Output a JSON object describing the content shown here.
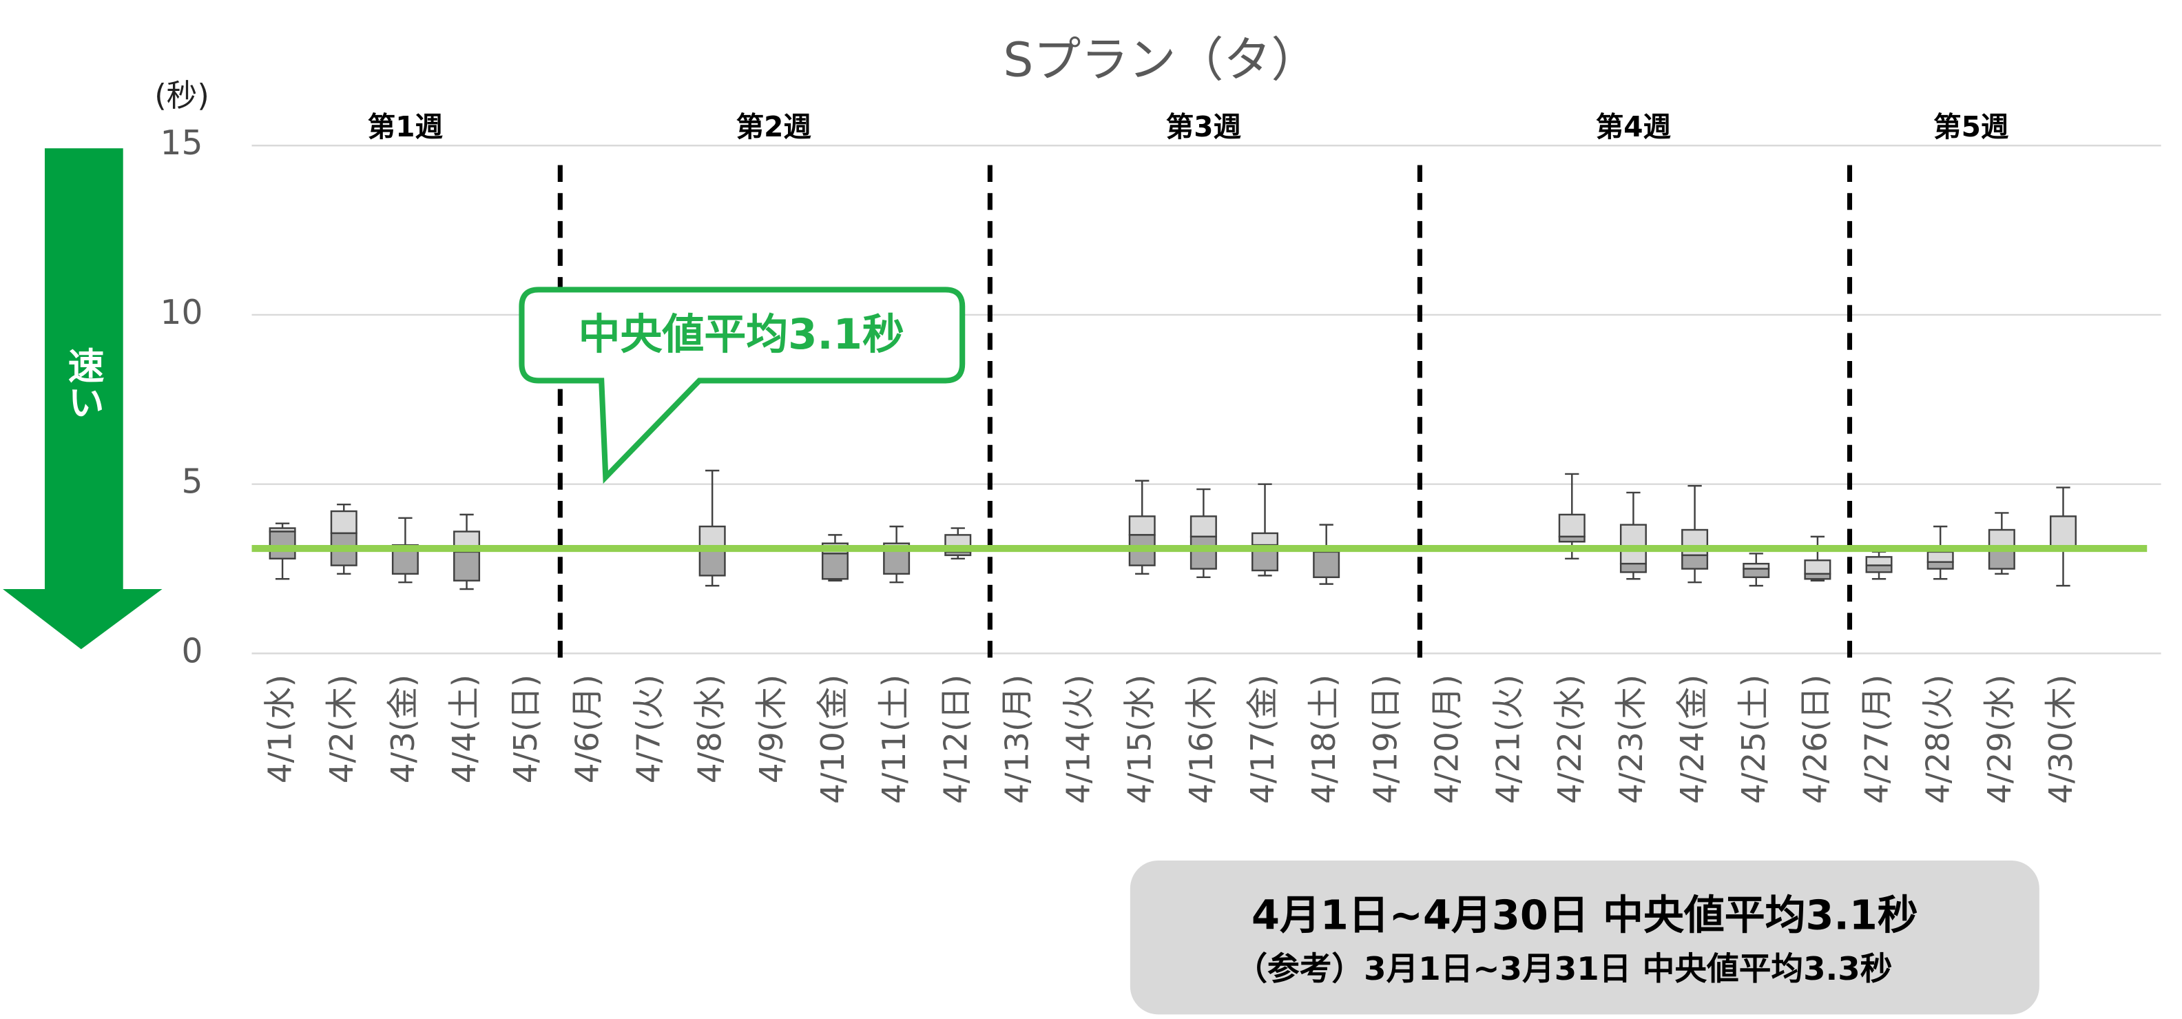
{
  "chart_data": {
    "type": "box",
    "title": "Sプラン（タ）",
    "y_unit": "(秒)",
    "speed_label": "速い",
    "callout": "中央値平均3.1秒",
    "summary": [
      "4月1日~4月30日 中央値平均3.1秒",
      "（参考）3月1日~3月31日 中央値平均3.3秒"
    ],
    "week_labels": [
      "第1週",
      "第2週",
      "第3週",
      "第4週",
      "第5週"
    ],
    "categories": [
      "4/1(水)",
      "4/2(木)",
      "4/3(金)",
      "4/4(土)",
      "4/5(日)",
      "4/6(月)",
      "4/7(火)",
      "4/8(水)",
      "4/9(木)",
      "4/10(金)",
      "4/11(土)",
      "4/12(日)",
      "4/13(月)",
      "4/14(火)",
      "4/15(水)",
      "4/16(木)",
      "4/17(金)",
      "4/18(土)",
      "4/19(日)",
      "4/20(月)",
      "4/21(火)",
      "4/22(水)",
      "4/23(木)",
      "4/24(金)",
      "4/25(土)",
      "4/26(日)",
      "4/27(月)",
      "4/28(火)",
      "4/29(水)",
      "4/30(木)"
    ],
    "max": [
      3.84,
      4.4,
      4.0,
      4.1,
      null,
      null,
      null,
      5.4,
      null,
      3.5,
      3.75,
      3.7,
      null,
      null,
      5.1,
      4.85,
      5.0,
      3.8,
      null,
      null,
      null,
      5.3,
      4.75,
      4.95,
      2.95,
      3.45,
      3.0,
      3.75,
      4.15,
      4.9
    ],
    "q3": [
      3.7,
      4.2,
      3.2,
      3.6,
      null,
      null,
      null,
      3.75,
      null,
      3.25,
      3.25,
      3.5,
      null,
      null,
      4.05,
      4.05,
      3.55,
      3.05,
      null,
      null,
      null,
      4.1,
      3.8,
      3.65,
      2.65,
      2.75,
      2.85,
      3.0,
      3.65,
      4.05
    ],
    "median": [
      3.6,
      3.55,
      3.1,
      3.0,
      null,
      null,
      null,
      3.05,
      null,
      2.95,
      3.1,
      3.0,
      null,
      null,
      3.5,
      3.45,
      3.2,
      3.0,
      null,
      null,
      null,
      3.45,
      2.65,
      2.9,
      2.5,
      2.35,
      2.6,
      2.7,
      3.1,
      3.15
    ],
    "q1": [
      2.8,
      2.6,
      2.35,
      2.15,
      null,
      null,
      null,
      2.3,
      null,
      2.2,
      2.35,
      2.9,
      null,
      null,
      2.6,
      2.5,
      2.45,
      2.25,
      null,
      null,
      null,
      3.3,
      2.4,
      2.5,
      2.25,
      2.2,
      2.4,
      2.5,
      2.5,
      3.1
    ],
    "min": [
      2.2,
      2.35,
      2.1,
      1.9,
      null,
      null,
      null,
      2.0,
      null,
      2.15,
      2.1,
      2.8,
      null,
      null,
      2.35,
      2.25,
      2.3,
      2.05,
      null,
      null,
      null,
      2.8,
      2.2,
      2.1,
      2.0,
      2.15,
      2.2,
      2.2,
      2.35,
      2.0
    ],
    "upper_color": "#d9d9d9",
    "lower_color": "#a6a6a6",
    "reference_line": 3.1,
    "reference_color": "#92d050",
    "ylim": [
      0,
      15
    ],
    "yticks": [
      0,
      5,
      10,
      15
    ],
    "grid": true
  }
}
